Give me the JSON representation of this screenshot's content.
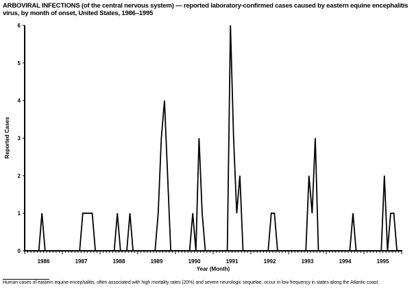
{
  "title": "ARBOVIRAL INFECTIONS (of the central nervous system) — reported laboratory-confirmed cases caused by eastern equine encephalitis virus, by month of onset, United States, 1986–1995",
  "footnote": "Human cases of eastern equine encephalitis, often associated with high mortality rates (20%) and severe neurologic sequelae, occur in low frequency in states along the Atlantic coast.",
  "chart_data": {
    "type": "line",
    "xlabel": "Year (Month)",
    "ylabel": "Reported Cases",
    "ylim": [
      0,
      6
    ],
    "yticks": [
      "0",
      "1",
      "2",
      "3",
      "4",
      "5",
      "6"
    ],
    "grid": false,
    "line_color": "#000000",
    "categories": [
      "1986",
      "1987",
      "1988",
      "1989",
      "1990",
      "1991",
      "1992",
      "1993",
      "1994",
      "1995"
    ],
    "series": [
      {
        "monthly": [
          [
            0,
            0,
            0,
            0,
            0,
            1,
            0,
            0,
            0,
            0,
            0,
            0
          ],
          [
            0,
            0,
            0,
            0,
            0,
            0,
            1,
            1,
            1,
            1,
            0,
            0
          ],
          [
            0,
            0,
            0,
            0,
            0,
            1,
            0,
            0,
            0,
            1,
            0,
            0
          ],
          [
            0,
            0,
            0,
            0,
            0,
            0,
            1,
            3,
            4,
            2,
            0,
            0
          ],
          [
            0,
            0,
            0,
            0,
            0,
            1,
            0,
            3,
            1,
            0,
            0,
            0
          ],
          [
            0,
            0,
            0,
            0,
            0,
            6,
            3,
            1,
            2,
            0,
            0,
            0
          ],
          [
            0,
            0,
            0,
            0,
            0,
            0,
            1,
            1,
            0,
            0,
            0,
            0
          ],
          [
            0,
            0,
            0,
            0,
            0,
            0,
            2,
            1,
            3,
            0,
            0,
            0
          ],
          [
            0,
            0,
            0,
            0,
            0,
            0,
            0,
            0,
            1,
            0,
            0,
            0
          ],
          [
            0,
            0,
            0,
            0,
            0,
            0,
            2,
            0,
            1,
            1,
            0,
            0
          ]
        ]
      }
    ]
  }
}
